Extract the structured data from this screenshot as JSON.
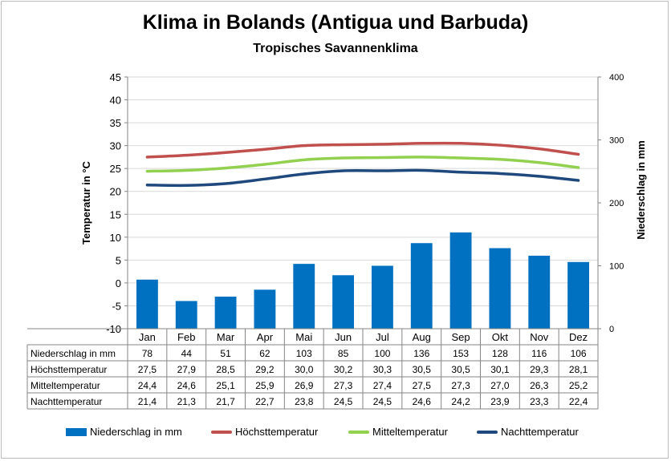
{
  "chart_data": {
    "type": "bar",
    "title": "Klima in Bolands (Antigua und Barbuda)",
    "subtitle": "Tropisches Savannenklima",
    "categories": [
      "Jan",
      "Feb",
      "Mar",
      "Apr",
      "Mai",
      "Jun",
      "Jul",
      "Aug",
      "Sep",
      "Okt",
      "Nov",
      "Dez"
    ],
    "ylabel": "Temperatur in °C",
    "ylim": [
      -10,
      45
    ],
    "y_ticks": [
      "45",
      "40",
      "35",
      "30",
      "25",
      "20",
      "15",
      "10",
      "5",
      "0",
      "-5",
      "-10"
    ],
    "y2label": "Niederschlag in mm",
    "y2lim": [
      0,
      400
    ],
    "y2_ticks": [
      "400",
      "300",
      "200",
      "100",
      "0"
    ],
    "grid": true,
    "legend_position": "bottom",
    "series": [
      {
        "name": "Niederschlag in mm",
        "type": "bar",
        "axis": "right",
        "color": "#0070c0",
        "values": [
          78,
          44,
          51,
          62,
          103,
          85,
          100,
          136,
          153,
          128,
          116,
          106
        ],
        "display": [
          "78",
          "44",
          "51",
          "62",
          "103",
          "85",
          "100",
          "136",
          "153",
          "128",
          "116",
          "106"
        ]
      },
      {
        "name": "Höchsttemperatur",
        "type": "line",
        "axis": "left",
        "color": "#c0504d",
        "values": [
          27.5,
          27.9,
          28.5,
          29.2,
          30.0,
          30.2,
          30.3,
          30.5,
          30.5,
          30.1,
          29.3,
          28.1
        ],
        "display": [
          "27,5",
          "27,9",
          "28,5",
          "29,2",
          "30,0",
          "30,2",
          "30,3",
          "30,5",
          "30,5",
          "30,1",
          "29,3",
          "28,1"
        ]
      },
      {
        "name": "Mitteltemperatur",
        "type": "line",
        "axis": "left",
        "color": "#92d050",
        "values": [
          24.4,
          24.6,
          25.1,
          25.9,
          26.9,
          27.3,
          27.4,
          27.5,
          27.3,
          27.0,
          26.3,
          25.2
        ],
        "display": [
          "24,4",
          "24,6",
          "25,1",
          "25,9",
          "26,9",
          "27,3",
          "27,4",
          "27,5",
          "27,3",
          "27,0",
          "26,3",
          "25,2"
        ]
      },
      {
        "name": "Nachttemperatur",
        "type": "line",
        "axis": "left",
        "color": "#1f497d",
        "values": [
          21.4,
          21.3,
          21.7,
          22.7,
          23.8,
          24.5,
          24.5,
          24.6,
          24.2,
          23.9,
          23.3,
          22.4
        ],
        "display": [
          "21,4",
          "21,3",
          "21,7",
          "22,7",
          "23,8",
          "24,5",
          "24,5",
          "24,6",
          "24,2",
          "23,9",
          "23,3",
          "22,4"
        ]
      }
    ]
  }
}
